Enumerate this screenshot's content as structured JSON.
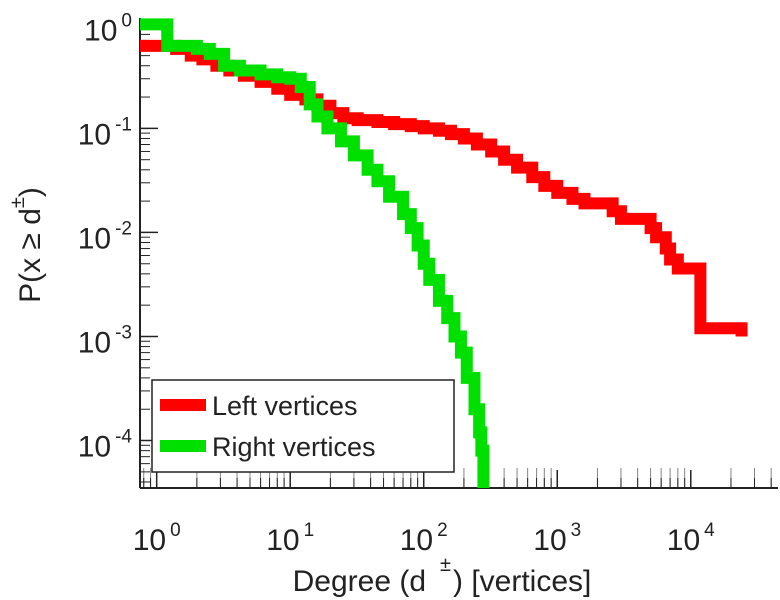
{
  "chart_data": {
    "type": "line",
    "step": true,
    "x_scale": "log",
    "y_scale": "log",
    "xlabel": "Degree (d ±) [vertices]",
    "xlabel_parts": {
      "pre": "Degree (d",
      "sup": "±",
      "post": ") [vertices]"
    },
    "ylabel": "P(x ≥ d±)",
    "ylabel_parts": {
      "pre": "P(x ",
      "sym": "≥",
      "mid": " d",
      "sup": "±",
      "post": ")"
    },
    "xlim": [
      0.75,
      45000
    ],
    "ylim": [
      3.5e-05,
      1.15
    ],
    "x_ticks": [
      {
        "value": 1,
        "base": "10",
        "exp": "0"
      },
      {
        "value": 10,
        "base": "10",
        "exp": "1"
      },
      {
        "value": 100,
        "base": "10",
        "exp": "2"
      },
      {
        "value": 1000,
        "base": "10",
        "exp": "3"
      },
      {
        "value": 10000,
        "base": "10",
        "exp": "4"
      }
    ],
    "y_ticks": [
      {
        "value": 1,
        "base": "10",
        "exp": "0"
      },
      {
        "value": 0.1,
        "base": "10",
        "exp": "-1"
      },
      {
        "value": 0.01,
        "base": "10",
        "exp": "-2"
      },
      {
        "value": 0.001,
        "base": "10",
        "exp": "-3"
      },
      {
        "value": 0.0001,
        "base": "10",
        "exp": "-4"
      }
    ],
    "legend_position": "bottom-left",
    "series": [
      {
        "name": "Left vertices",
        "color": "#ff0000",
        "points": [
          [
            0.75,
            0.62
          ],
          [
            1.4,
            0.58
          ],
          [
            1.8,
            0.5
          ],
          [
            2.2,
            0.46
          ],
          [
            2.8,
            0.4
          ],
          [
            3.5,
            0.36
          ],
          [
            4.5,
            0.32
          ],
          [
            6,
            0.28
          ],
          [
            8,
            0.24
          ],
          [
            10,
            0.21
          ],
          [
            13,
            0.19
          ],
          [
            16,
            0.165
          ],
          [
            20,
            0.14
          ],
          [
            25,
            0.125
          ],
          [
            32,
            0.12
          ],
          [
            45,
            0.115
          ],
          [
            60,
            0.11
          ],
          [
            80,
            0.105
          ],
          [
            100,
            0.1
          ],
          [
            130,
            0.095
          ],
          [
            160,
            0.088
          ],
          [
            200,
            0.08
          ],
          [
            250,
            0.07
          ],
          [
            320,
            0.06
          ],
          [
            400,
            0.05
          ],
          [
            500,
            0.042
          ],
          [
            650,
            0.034
          ],
          [
            800,
            0.028
          ],
          [
            1000,
            0.024
          ],
          [
            1300,
            0.021
          ],
          [
            1600,
            0.019
          ],
          [
            2000,
            0.019
          ],
          [
            2600,
            0.016
          ],
          [
            3000,
            0.0135
          ],
          [
            4000,
            0.0135
          ],
          [
            5000,
            0.011
          ],
          [
            5500,
            0.009
          ],
          [
            6500,
            0.007
          ],
          [
            7000,
            0.0055
          ],
          [
            8000,
            0.0045
          ],
          [
            11000,
            0.0045
          ],
          [
            11800,
            0.0012
          ],
          [
            20000,
            0.0012
          ],
          [
            24000,
            0.001
          ]
        ]
      },
      {
        "name": "Right vertices",
        "color": "#00e000",
        "points": [
          [
            0.75,
            1.0
          ],
          [
            1.15,
            1.0
          ],
          [
            1.2,
            0.62
          ],
          [
            2.0,
            0.58
          ],
          [
            2.5,
            0.52
          ],
          [
            3.2,
            0.4
          ],
          [
            4.2,
            0.36
          ],
          [
            6,
            0.33
          ],
          [
            8,
            0.31
          ],
          [
            10,
            0.3
          ],
          [
            12,
            0.25
          ],
          [
            14,
            0.17
          ],
          [
            16,
            0.13
          ],
          [
            19,
            0.1
          ],
          [
            24,
            0.075
          ],
          [
            30,
            0.055
          ],
          [
            38,
            0.04
          ],
          [
            45,
            0.031
          ],
          [
            55,
            0.022
          ],
          [
            70,
            0.015
          ],
          [
            80,
            0.011
          ],
          [
            90,
            0.0075
          ],
          [
            100,
            0.005
          ],
          [
            110,
            0.0035
          ],
          [
            130,
            0.0022
          ],
          [
            150,
            0.0015
          ],
          [
            170,
            0.001
          ],
          [
            190,
            0.0007
          ],
          [
            210,
            0.0004
          ],
          [
            240,
            0.0002
          ],
          [
            260,
            0.00012
          ],
          [
            270,
            8e-05
          ],
          [
            280,
            4e-05
          ]
        ]
      }
    ]
  }
}
